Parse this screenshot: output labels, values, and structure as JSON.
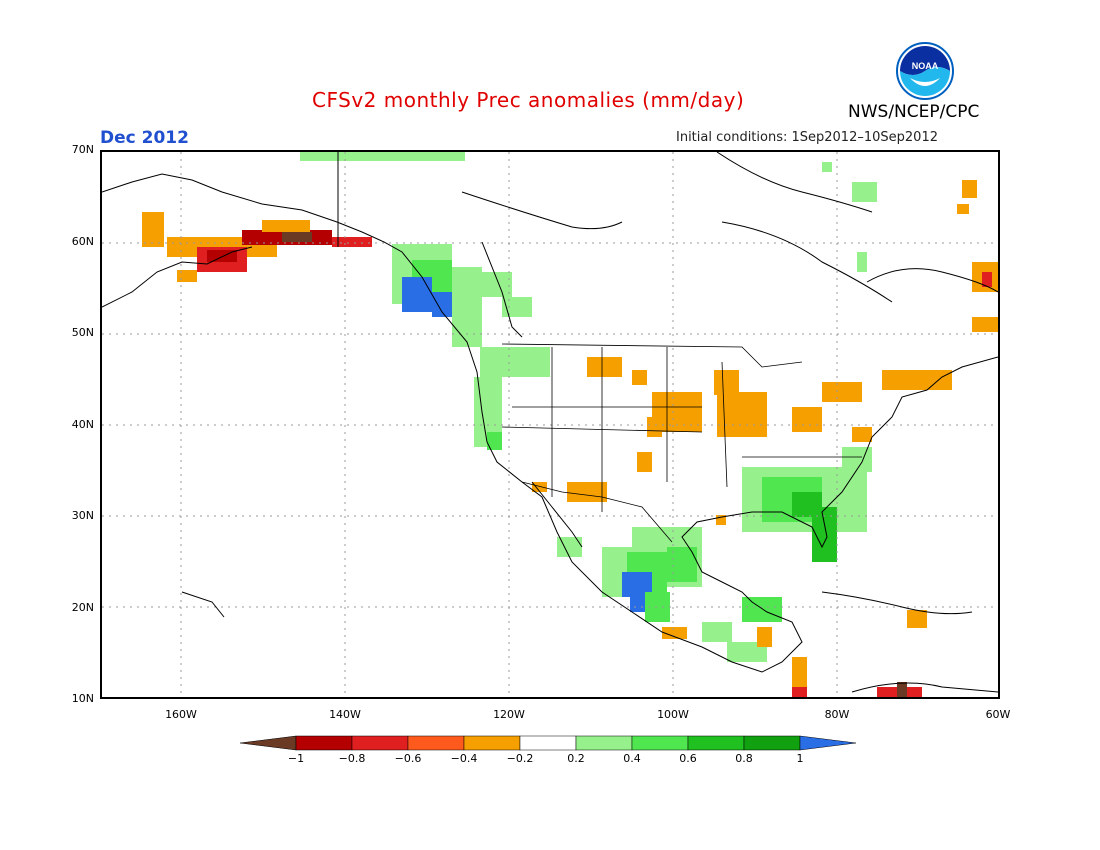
{
  "title": "CFSv2 monthly Prec anomalies (mm/day)",
  "organization": "NWS/NCEP/CPC",
  "logo_text": "NOAA",
  "target_month": "Dec 2012",
  "initial_conditions": "Initial conditions: 1Sep2012–10Sep2012",
  "lat_labels": [
    "70N",
    "60N",
    "50N",
    "40N",
    "30N",
    "20N",
    "10N"
  ],
  "lon_labels": [
    "160W",
    "140W",
    "120W",
    "100W",
    "80W",
    "60W"
  ],
  "colorbar": {
    "ticks": [
      "−1",
      "−0.8",
      "−0.6",
      "−0.4",
      "−0.2",
      "0.2",
      "0.4",
      "0.6",
      "0.8",
      "1"
    ],
    "colors": [
      "#6b3a24",
      "#b40000",
      "#e02020",
      "#ff5a1e",
      "#f5a000",
      "#ffffff",
      "#96f08c",
      "#50e650",
      "#20c020",
      "#10a010",
      "#2a6ee6"
    ]
  },
  "colors": {
    "title": "#e00000",
    "date": "#2050d0"
  }
}
